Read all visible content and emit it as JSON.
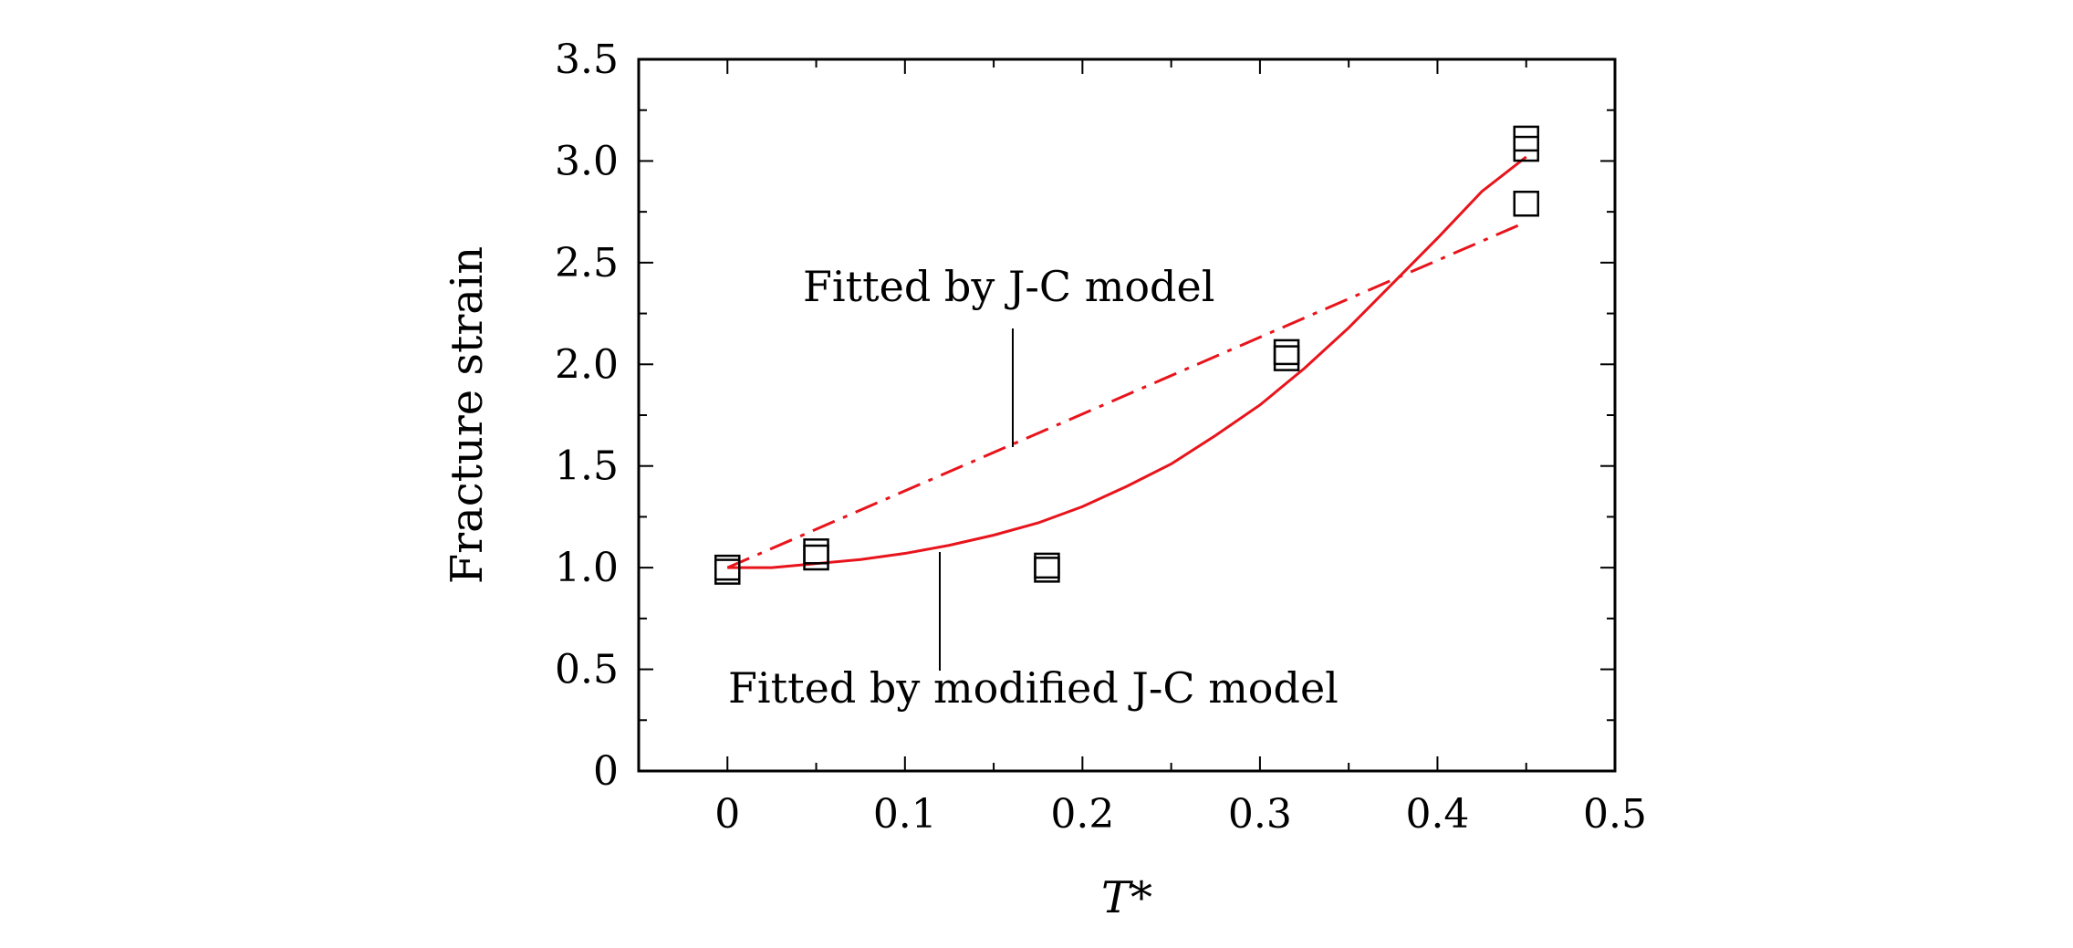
{
  "chart_data": {
    "type": "scatter",
    "xlabel": "T*",
    "ylabel": "Fracture strain",
    "xlim": [
      -0.05,
      0.5
    ],
    "ylim": [
      0,
      3.5
    ],
    "xticks": [
      "0",
      "0.1",
      "0.2",
      "0.3",
      "0.4",
      "0.5"
    ],
    "yticks": [
      "0",
      "0.5",
      "1.0",
      "1.5",
      "2.0",
      "2.5",
      "3.0",
      "3.5"
    ],
    "series": [
      {
        "kind": "markers",
        "marker": "open-square",
        "color": "#000000",
        "points": [
          [
            0,
            1.0
          ],
          [
            0,
            0.98
          ],
          [
            0.05,
            1.08
          ],
          [
            0.05,
            1.05
          ],
          [
            0.18,
            1.01
          ],
          [
            0.18,
            0.99
          ],
          [
            0.315,
            2.06
          ],
          [
            0.315,
            2.03
          ],
          [
            0.45,
            3.11
          ],
          [
            0.45,
            3.06
          ],
          [
            0.45,
            2.79
          ]
        ]
      },
      {
        "kind": "line",
        "style": "dash-dot",
        "color": "#e8141b",
        "x": [
          0,
          0.45
        ],
        "y": [
          1.0,
          2.7
        ]
      },
      {
        "kind": "line",
        "style": "solid",
        "color": "#e8141b",
        "x": [
          0,
          0.025,
          0.05,
          0.075,
          0.1,
          0.125,
          0.15,
          0.175,
          0.2,
          0.225,
          0.25,
          0.275,
          0.3,
          0.325,
          0.35,
          0.375,
          0.4,
          0.425,
          0.45
        ],
        "y": [
          1.0,
          1.0,
          1.02,
          1.04,
          1.07,
          1.11,
          1.16,
          1.22,
          1.3,
          1.4,
          1.51,
          1.65,
          1.8,
          1.98,
          2.18,
          2.4,
          2.62,
          2.85,
          3.02
        ]
      }
    ],
    "annotations": [
      {
        "text": "Fitted by J-C model",
        "target": "dash-dot"
      },
      {
        "text": "Fitted by modified  J-C model",
        "target": "solid"
      }
    ]
  }
}
